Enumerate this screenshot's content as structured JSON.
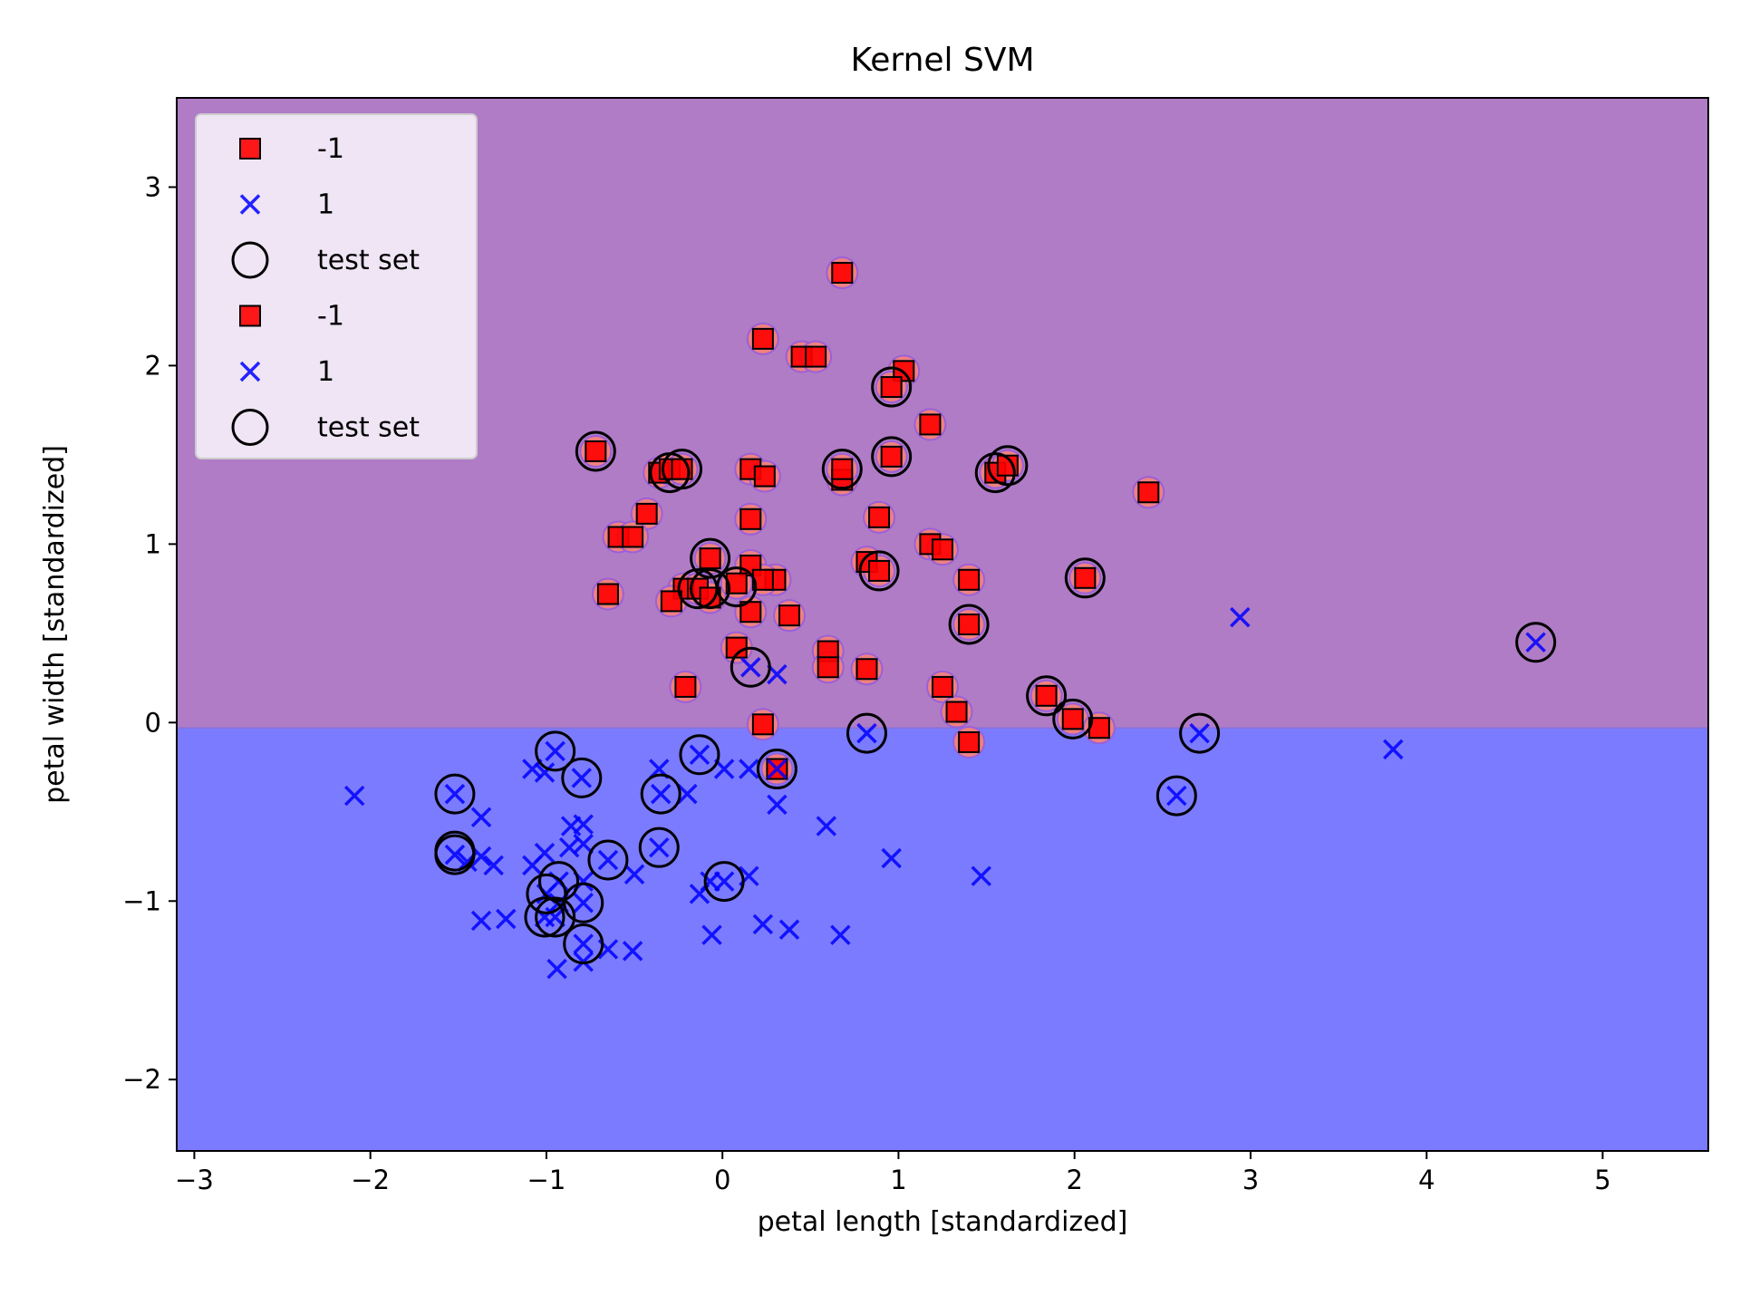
{
  "chart_data": {
    "type": "scatter",
    "title": "Kernel SVM",
    "xlabel": "petal length [standardized]",
    "ylabel": "petal width [standardized]",
    "xlim": [
      -3.1,
      5.6
    ],
    "ylim": [
      -2.4,
      3.5
    ],
    "xticks": [
      -3,
      -2,
      -1,
      0,
      1,
      2,
      3,
      4,
      5
    ],
    "yticks": [
      -2,
      -1,
      0,
      1,
      2,
      3
    ],
    "xtick_labels": [
      "−3",
      "−2",
      "−1",
      "0",
      "1",
      "2",
      "3",
      "4",
      "5"
    ],
    "ytick_labels": [
      "−2",
      "−1",
      "0",
      "1",
      "2",
      "3"
    ],
    "grid": false,
    "legend_position": "top-left",
    "decision_boundary_y": -0.03,
    "regions": [
      {
        "label": "-1",
        "side": "above",
        "color": "#b07cc6"
      },
      {
        "label": "1",
        "side": "below",
        "color": "#7b7bff"
      }
    ],
    "colors": {
      "class_neg": "#ff0000",
      "class_pos": "#0000ff",
      "test_circle": "#000000",
      "halo": "#f08080"
    },
    "legend": [
      {
        "label": "-1",
        "marker": "square"
      },
      {
        "label": "1",
        "marker": "x"
      },
      {
        "label": "test set",
        "marker": "circle"
      },
      {
        "label": "-1",
        "marker": "square"
      },
      {
        "label": "1",
        "marker": "x"
      },
      {
        "label": "test set",
        "marker": "circle"
      }
    ],
    "series": [
      {
        "name": "-1",
        "marker": "square",
        "points": [
          [
            0.68,
            2.52
          ],
          [
            0.23,
            2.15
          ],
          [
            0.45,
            2.05
          ],
          [
            0.53,
            2.05
          ],
          [
            1.03,
            1.97
          ],
          [
            0.96,
            1.88
          ],
          [
            1.18,
            1.67
          ],
          [
            -0.72,
            1.52
          ],
          [
            0.96,
            1.49
          ],
          [
            1.55,
            1.4
          ],
          [
            1.62,
            1.44
          ],
          [
            -0.36,
            1.4
          ],
          [
            -0.3,
            1.42
          ],
          [
            -0.23,
            1.42
          ],
          [
            0.16,
            1.42
          ],
          [
            0.24,
            1.38
          ],
          [
            0.68,
            1.36
          ],
          [
            0.68,
            1.42
          ],
          [
            2.42,
            1.29
          ],
          [
            -0.43,
            1.17
          ],
          [
            0.89,
            1.15
          ],
          [
            0.16,
            1.14
          ],
          [
            -0.59,
            1.04
          ],
          [
            -0.51,
            1.04
          ],
          [
            1.18,
            1.0
          ],
          [
            1.25,
            0.97
          ],
          [
            -0.07,
            0.92
          ],
          [
            0.82,
            0.9
          ],
          [
            0.89,
            0.85
          ],
          [
            0.16,
            0.88
          ],
          [
            1.4,
            0.8
          ],
          [
            2.06,
            0.81
          ],
          [
            0.3,
            0.8
          ],
          [
            0.23,
            0.8
          ],
          [
            -0.22,
            0.75
          ],
          [
            -0.14,
            0.75
          ],
          [
            -0.07,
            0.7
          ],
          [
            0.08,
            0.78
          ],
          [
            -0.29,
            0.68
          ],
          [
            -0.65,
            0.72
          ],
          [
            0.16,
            0.62
          ],
          [
            0.38,
            0.6
          ],
          [
            1.4,
            0.55
          ],
          [
            0.08,
            0.42
          ],
          [
            0.6,
            0.4
          ],
          [
            0.6,
            0.31
          ],
          [
            0.82,
            0.3
          ],
          [
            -0.21,
            0.2
          ],
          [
            1.25,
            0.2
          ],
          [
            1.84,
            0.15
          ],
          [
            1.33,
            0.06
          ],
          [
            0.23,
            -0.01
          ],
          [
            1.99,
            0.02
          ],
          [
            2.14,
            -0.03
          ],
          [
            1.4,
            -0.11
          ],
          [
            0.31,
            -0.26
          ]
        ]
      },
      {
        "name": "1",
        "marker": "x",
        "points": [
          [
            2.94,
            0.59
          ],
          [
            4.62,
            0.45
          ],
          [
            3.81,
            -0.15
          ],
          [
            0.16,
            0.31
          ],
          [
            0.31,
            0.27
          ],
          [
            0.82,
            -0.06
          ],
          [
            2.71,
            -0.06
          ],
          [
            -0.95,
            -0.16
          ],
          [
            -1.08,
            -0.26
          ],
          [
            -1.01,
            -0.28
          ],
          [
            -0.13,
            -0.18
          ],
          [
            0.01,
            -0.26
          ],
          [
            0.15,
            -0.26
          ],
          [
            -0.36,
            -0.26
          ],
          [
            0.31,
            -0.26
          ],
          [
            -0.8,
            -0.31
          ],
          [
            -1.52,
            -0.4
          ],
          [
            -0.35,
            -0.4
          ],
          [
            -0.2,
            -0.4
          ],
          [
            2.58,
            -0.41
          ],
          [
            -2.09,
            -0.41
          ],
          [
            -1.37,
            -0.53
          ],
          [
            0.31,
            -0.46
          ],
          [
            -0.86,
            -0.58
          ],
          [
            -0.79,
            -0.57
          ],
          [
            0.59,
            -0.58
          ],
          [
            -0.36,
            -0.7
          ],
          [
            -1.37,
            -0.75
          ],
          [
            -1.52,
            -0.74
          ],
          [
            -1.01,
            -0.73
          ],
          [
            -0.87,
            -0.7
          ],
          [
            -0.79,
            -0.68
          ],
          [
            -1.45,
            -0.78
          ],
          [
            -1.3,
            -0.8
          ],
          [
            -0.65,
            -0.77
          ],
          [
            0.96,
            -0.76
          ],
          [
            -1.08,
            -0.8
          ],
          [
            -0.93,
            -0.89
          ],
          [
            -0.79,
            -0.89
          ],
          [
            0.01,
            -0.89
          ],
          [
            -0.07,
            -0.89
          ],
          [
            0.15,
            -0.86
          ],
          [
            -0.5,
            -0.85
          ],
          [
            1.47,
            -0.86
          ],
          [
            -1.0,
            -0.96
          ],
          [
            -0.13,
            -0.96
          ],
          [
            -0.79,
            -1.01
          ],
          [
            -0.93,
            -1.01
          ],
          [
            -1.37,
            -1.11
          ],
          [
            -1.23,
            -1.1
          ],
          [
            -1.01,
            -1.09
          ],
          [
            -0.95,
            -1.09
          ],
          [
            0.23,
            -1.13
          ],
          [
            0.38,
            -1.16
          ],
          [
            -0.06,
            -1.19
          ],
          [
            0.67,
            -1.19
          ],
          [
            -0.79,
            -1.24
          ],
          [
            -0.65,
            -1.27
          ],
          [
            -0.51,
            -1.28
          ],
          [
            -0.79,
            -1.34
          ],
          [
            -0.94,
            -1.38
          ]
        ]
      },
      {
        "name": "test set",
        "marker": "circle",
        "points": [
          [
            0.96,
            1.88
          ],
          [
            -0.72,
            1.52
          ],
          [
            0.96,
            1.49
          ],
          [
            1.55,
            1.4
          ],
          [
            1.62,
            1.44
          ],
          [
            -0.3,
            1.4
          ],
          [
            -0.23,
            1.42
          ],
          [
            0.68,
            1.42
          ],
          [
            -0.07,
            0.92
          ],
          [
            0.89,
            0.85
          ],
          [
            2.06,
            0.81
          ],
          [
            -0.14,
            0.75
          ],
          [
            -0.07,
            0.75
          ],
          [
            0.08,
            0.76
          ],
          [
            1.4,
            0.55
          ],
          [
            4.62,
            0.45
          ],
          [
            0.16,
            0.31
          ],
          [
            1.84,
            0.15
          ],
          [
            1.99,
            0.02
          ],
          [
            0.82,
            -0.06
          ],
          [
            2.71,
            -0.06
          ],
          [
            -0.95,
            -0.16
          ],
          [
            -0.13,
            -0.18
          ],
          [
            0.31,
            -0.26
          ],
          [
            -0.8,
            -0.31
          ],
          [
            -1.52,
            -0.4
          ],
          [
            -0.35,
            -0.4
          ],
          [
            2.58,
            -0.41
          ],
          [
            -0.36,
            -0.7
          ],
          [
            -1.52,
            -0.72
          ],
          [
            -1.52,
            -0.74
          ],
          [
            -0.65,
            -0.77
          ],
          [
            -0.93,
            -0.89
          ],
          [
            0.01,
            -0.89
          ],
          [
            -1.0,
            -0.96
          ],
          [
            -0.79,
            -1.01
          ],
          [
            -1.01,
            -1.09
          ],
          [
            -0.95,
            -1.09
          ],
          [
            -0.79,
            -1.24
          ]
        ]
      }
    ]
  }
}
